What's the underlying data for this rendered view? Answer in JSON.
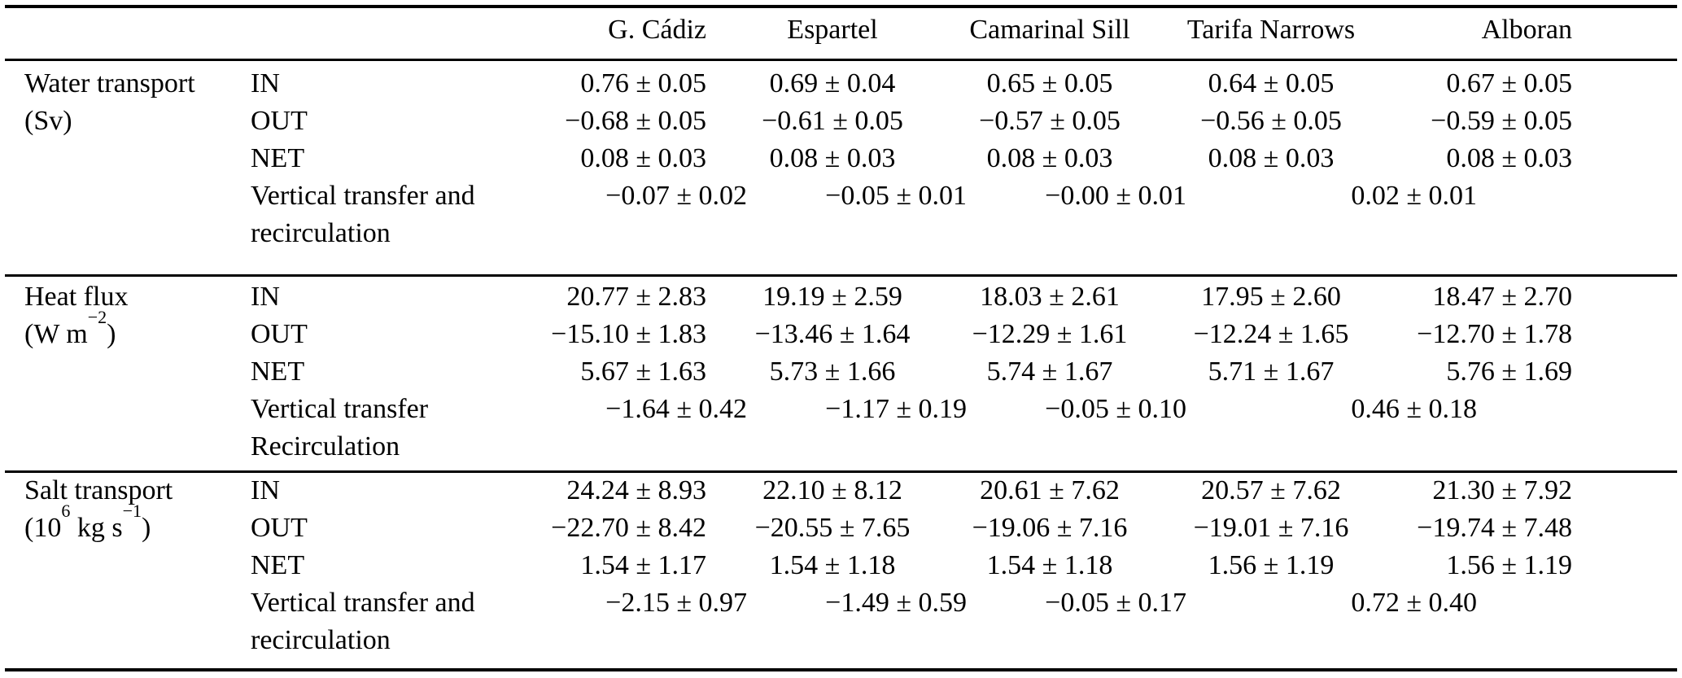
{
  "table": {
    "columns": [
      "G. Cádiz",
      "Espartel",
      "Camarinal Sill",
      "Tarifa Narrows",
      "Alboran"
    ],
    "sections": [
      {
        "name": "Water transport",
        "unit": [
          {
            "t": "(Sv)"
          }
        ],
        "rows": [
          {
            "label": "IN",
            "values": [
              "0.76 ± 0.05",
              "0.69 ± 0.04",
              "0.65 ± 0.05",
              "0.64 ± 0.05",
              "0.67 ± 0.05"
            ]
          },
          {
            "label": "OUT",
            "values": [
              "−0.68 ± 0.05",
              "−0.61 ± 0.05",
              "−0.57 ± 0.05",
              "−0.56 ± 0.05",
              "−0.59 ± 0.05"
            ]
          },
          {
            "label": "NET",
            "values": [
              "0.08 ± 0.03",
              "0.08 ± 0.03",
              "0.08 ± 0.03",
              "0.08 ± 0.03",
              "0.08 ± 0.03"
            ]
          }
        ],
        "transfer_label_line1": "Vertical transfer and",
        "transfer_label_line2": "recirculation",
        "transfer_values": [
          "−0.07 ± 0.02",
          "−0.05 ± 0.01",
          "−0.00 ± 0.01",
          "0.02 ± 0.01"
        ]
      },
      {
        "name": "Heat flux",
        "unit": [
          {
            "t": "(W m"
          },
          {
            "sup": "−2"
          },
          {
            "t": ")"
          }
        ],
        "rows": [
          {
            "label": "IN",
            "values": [
              "20.77 ± 2.83",
              "19.19 ± 2.59",
              "18.03 ± 2.61",
              "17.95 ± 2.60",
              "18.47 ± 2.70"
            ]
          },
          {
            "label": "OUT",
            "values": [
              "−15.10 ± 1.83",
              "−13.46 ± 1.64",
              "−12.29 ± 1.61",
              "−12.24 ± 1.65",
              "−12.70 ± 1.78"
            ]
          },
          {
            "label": "NET",
            "values": [
              "5.67 ± 1.63",
              "5.73 ± 1.66",
              "5.74 ± 1.67",
              "5.71 ± 1.67",
              "5.76 ± 1.69"
            ]
          }
        ],
        "transfer_label_line1": "Vertical transfer",
        "transfer_label_line2": "Recirculation",
        "transfer_values": [
          "−1.64 ± 0.42",
          "−1.17 ± 0.19",
          "−0.05 ± 0.10",
          "0.46 ± 0.18"
        ]
      },
      {
        "name": "Salt transport",
        "unit": [
          {
            "t": "(10"
          },
          {
            "sup": "6"
          },
          {
            "t": " kg s"
          },
          {
            "sup": "−1"
          },
          {
            "t": ")"
          }
        ],
        "rows": [
          {
            "label": "IN",
            "values": [
              "24.24 ± 8.93",
              "22.10 ± 8.12",
              "20.61 ± 7.62",
              "20.57 ± 7.62",
              "21.30 ± 7.92"
            ]
          },
          {
            "label": "OUT",
            "values": [
              "−22.70 ± 8.42",
              "−20.55 ± 7.65",
              "−19.06 ± 7.16",
              "−19.01 ± 7.16",
              "−19.74 ± 7.48"
            ]
          },
          {
            "label": "NET",
            "values": [
              "1.54 ± 1.17",
              "1.54 ± 1.18",
              "1.54 ± 1.18",
              "1.56 ± 1.19",
              "1.56 ± 1.19"
            ]
          }
        ],
        "transfer_label_line1": "Vertical transfer and",
        "transfer_label_line2": "recirculation",
        "transfer_values": [
          "−2.15 ± 0.97",
          "−1.49 ± 0.59",
          "−0.05 ± 0.17",
          "0.72 ± 0.40"
        ]
      }
    ]
  }
}
